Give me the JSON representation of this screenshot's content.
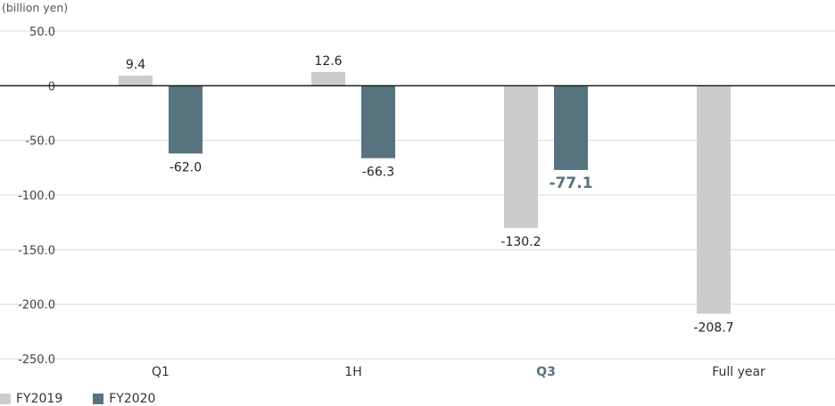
{
  "chart_data": {
    "type": "bar",
    "unit_label": "(billion yen)",
    "title": "",
    "xlabel": "",
    "ylabel": "",
    "categories": [
      "Q1",
      "1H",
      "Q3",
      "Full year"
    ],
    "highlight_category": "Q3",
    "ylim": [
      -250,
      50
    ],
    "yticks": [
      50,
      0,
      -50,
      -100,
      -150,
      -200,
      -250
    ],
    "ytick_labels": [
      "50.0",
      "0",
      "-50.0",
      "-100.0",
      "-150.0",
      "-200.0",
      "-250.0"
    ],
    "grid": true,
    "legend_position": "bottom-left",
    "series": [
      {
        "name": "FY2019",
        "color": "#cccccc",
        "values": [
          9.4,
          12.6,
          -130.2,
          -208.7
        ],
        "labels": [
          "9.4",
          "12.6",
          "-130.2",
          "-208.7"
        ]
      },
      {
        "name": "FY2020",
        "color": "#56737e",
        "values": [
          -62.0,
          -66.3,
          -77.1,
          null
        ],
        "labels": [
          "-62.0",
          "-66.3",
          "-77.1",
          ""
        ]
      }
    ],
    "highlight_color": "#56737e"
  }
}
